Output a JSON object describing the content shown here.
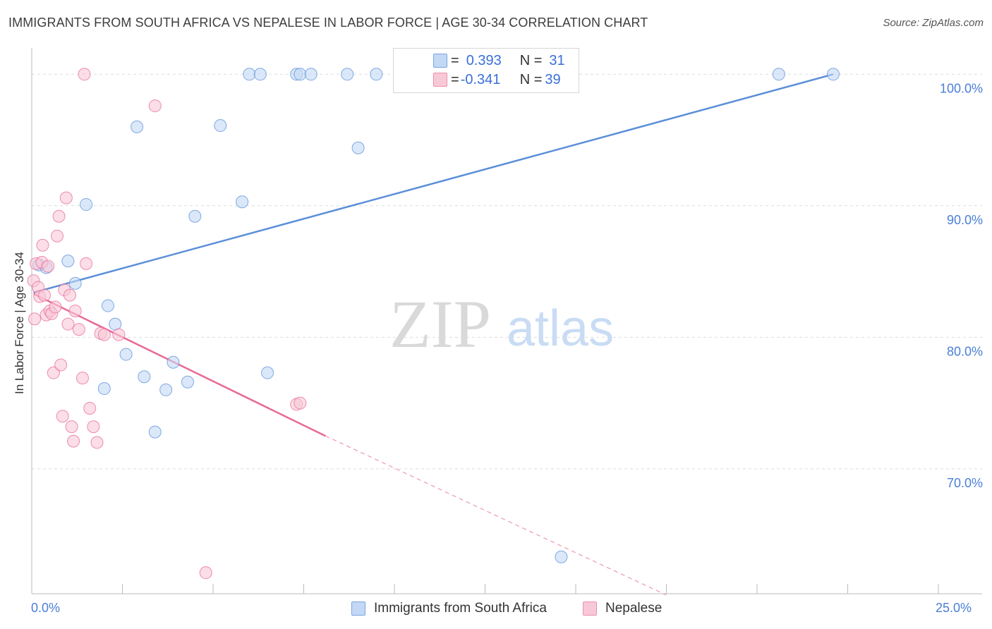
{
  "title": "IMMIGRANTS FROM SOUTH AFRICA VS NEPALESE IN LABOR FORCE | AGE 30-34 CORRELATION CHART",
  "source": "Source: ZipAtlas.com",
  "watermark": {
    "zip": "ZIP",
    "atlas": "atlas"
  },
  "legend": {
    "rows": [
      {
        "r_label": "R = ",
        "r_value": "0.393",
        "n_label": "N = ",
        "n_value": "31",
        "color": "#a9c8f2"
      },
      {
        "r_label": "R = ",
        "r_value": "-0.341",
        "n_label": "N = ",
        "n_value": "39",
        "color": "#f7b8cb"
      }
    ]
  },
  "bottom_legend": [
    {
      "label": "Immigrants from South Africa",
      "color": "#a9c8f2"
    },
    {
      "label": "Nepalese",
      "color": "#f7b8cb"
    }
  ],
  "chart_data": {
    "type": "scatter",
    "ylabel": "In Labor Force | Age 30-34",
    "xlim": [
      0,
      25
    ],
    "ylim": [
      60.5,
      102
    ],
    "x_tick_labels": [
      {
        "x": 0,
        "label": "0.0%"
      },
      {
        "x": 25,
        "label": "25.0%"
      }
    ],
    "y_ticks": [
      {
        "y": 100,
        "label": "100.0%"
      },
      {
        "y": 90,
        "label": "90.0%"
      },
      {
        "y": 80,
        "label": "80.0%"
      },
      {
        "y": 70,
        "label": "70.0%"
      }
    ],
    "grid": true,
    "series": [
      {
        "name": "Immigrants from South Africa",
        "color": "#5b8fd9",
        "fill": "#c3d8f5",
        "points": [
          [
            0.2,
            85.5
          ],
          [
            0.4,
            85.3
          ],
          [
            1.0,
            85.8
          ],
          [
            1.2,
            84.1
          ],
          [
            1.5,
            90.1
          ],
          [
            2.0,
            76.1
          ],
          [
            2.1,
            82.4
          ],
          [
            2.3,
            81.0
          ],
          [
            2.6,
            78.7
          ],
          [
            2.9,
            96.0
          ],
          [
            3.1,
            77.0
          ],
          [
            3.4,
            72.8
          ],
          [
            3.7,
            76.0
          ],
          [
            3.9,
            78.1
          ],
          [
            4.3,
            76.6
          ],
          [
            4.5,
            89.2
          ],
          [
            5.2,
            96.1
          ],
          [
            5.8,
            90.3
          ],
          [
            6.0,
            100.0
          ],
          [
            6.3,
            100.0
          ],
          [
            6.5,
            77.3
          ],
          [
            7.3,
            100.0
          ],
          [
            7.4,
            100.0
          ],
          [
            7.7,
            100.0
          ],
          [
            8.7,
            100.0
          ],
          [
            9.0,
            94.4
          ],
          [
            9.5,
            100.0
          ],
          [
            11.1,
            100.0
          ],
          [
            14.6,
            63.3
          ],
          [
            20.6,
            100.0
          ],
          [
            22.1,
            100.0
          ]
        ],
        "trend": {
          "x0": 0.05,
          "y0": 83.4,
          "x1": 22.1,
          "y1": 100.0
        }
      },
      {
        "name": "Nepalese",
        "color": "#e86a95",
        "fill": "#f9c8d7",
        "points": [
          [
            0.05,
            84.3
          ],
          [
            0.08,
            81.4
          ],
          [
            0.12,
            85.6
          ],
          [
            0.18,
            83.8
          ],
          [
            0.22,
            83.1
          ],
          [
            0.28,
            85.7
          ],
          [
            0.3,
            87.0
          ],
          [
            0.35,
            83.2
          ],
          [
            0.4,
            81.7
          ],
          [
            0.45,
            85.4
          ],
          [
            0.5,
            82.0
          ],
          [
            0.55,
            81.8
          ],
          [
            0.6,
            77.3
          ],
          [
            0.65,
            82.3
          ],
          [
            0.7,
            87.7
          ],
          [
            0.75,
            89.2
          ],
          [
            0.8,
            77.9
          ],
          [
            0.85,
            74.0
          ],
          [
            0.9,
            83.6
          ],
          [
            0.95,
            90.6
          ],
          [
            1.0,
            81.0
          ],
          [
            1.05,
            83.2
          ],
          [
            1.1,
            73.2
          ],
          [
            1.15,
            72.1
          ],
          [
            1.2,
            82.0
          ],
          [
            1.3,
            80.6
          ],
          [
            1.4,
            76.9
          ],
          [
            1.45,
            100.0
          ],
          [
            1.5,
            85.6
          ],
          [
            1.6,
            74.6
          ],
          [
            1.7,
            73.2
          ],
          [
            1.8,
            72.0
          ],
          [
            1.9,
            80.3
          ],
          [
            2.0,
            80.2
          ],
          [
            2.4,
            80.2
          ],
          [
            3.4,
            97.6
          ],
          [
            4.8,
            62.1
          ],
          [
            7.3,
            74.9
          ],
          [
            7.4,
            75.0
          ]
        ],
        "trend": {
          "x0": 0.05,
          "y0": 83.3,
          "x1": 8.1,
          "y1": 72.5
        },
        "trend_dashed": {
          "x0": 8.1,
          "y0": 72.5,
          "x1": 17.5,
          "y1": 60.4
        }
      }
    ]
  }
}
